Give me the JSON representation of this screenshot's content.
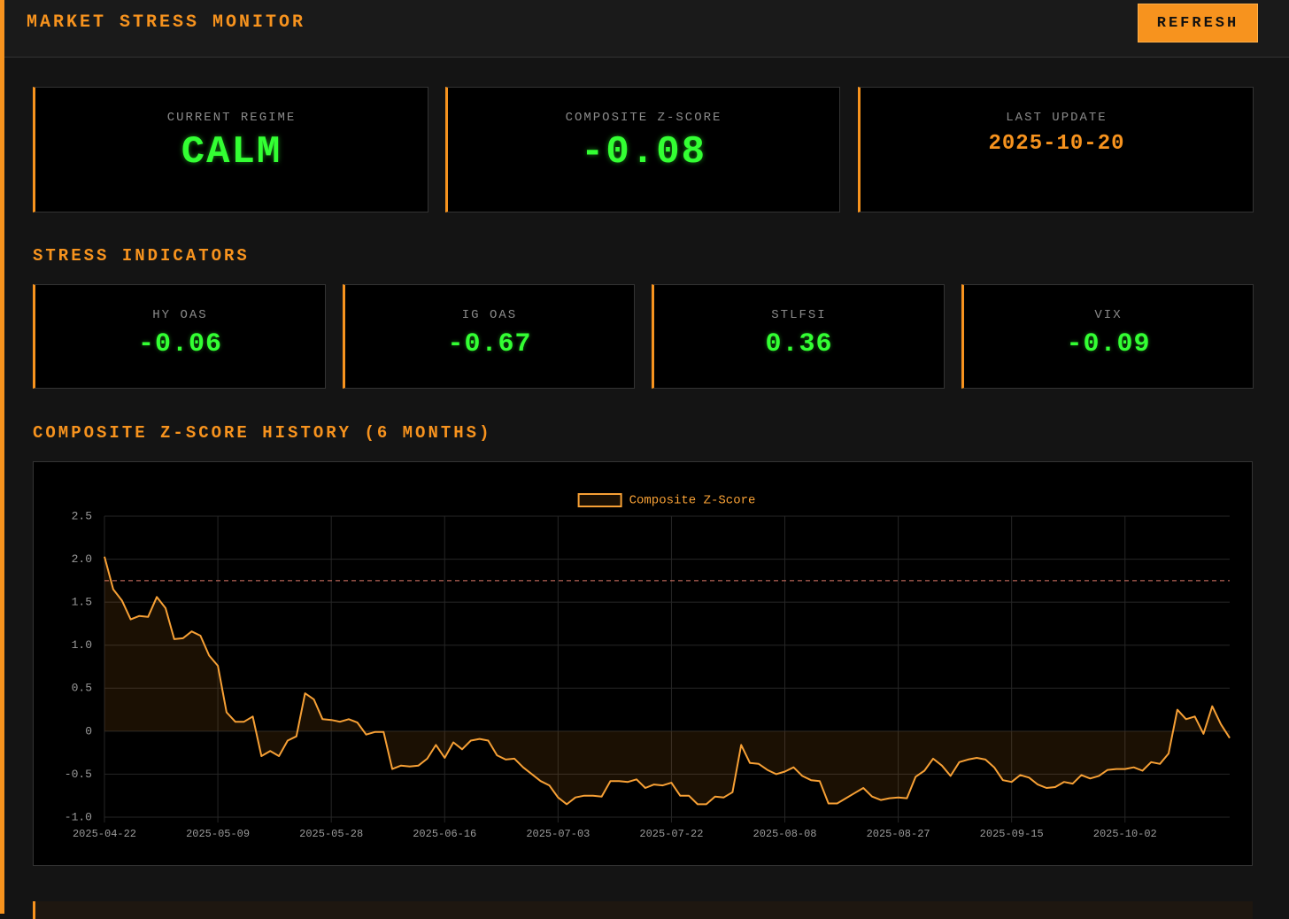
{
  "header": {
    "title": "MARKET STRESS MONITOR",
    "button": "REFRESH"
  },
  "summary": [
    {
      "label": "CURRENT REGIME",
      "value": "CALM"
    },
    {
      "label": "COMPOSITE Z-SCORE",
      "value": "-0.08"
    },
    {
      "label": "LAST UPDATE",
      "value": "2025-10-20"
    }
  ],
  "indicators_title": "STRESS INDICATORS",
  "indicators": [
    {
      "label": "HY OAS",
      "value": "-0.06"
    },
    {
      "label": "IG OAS",
      "value": "-0.67"
    },
    {
      "label": "STLFSI",
      "value": "0.36"
    },
    {
      "label": "VIX",
      "value": "-0.09"
    }
  ],
  "chart_title": "COMPOSITE Z-SCORE HISTORY (6 MONTHS)",
  "chart_data": {
    "type": "line",
    "categories": [
      "2025-04-22",
      null,
      null,
      null,
      null,
      null,
      null,
      null,
      null,
      null,
      null,
      null,
      null,
      "2025-05-09",
      null,
      null,
      null,
      null,
      null,
      null,
      null,
      null,
      null,
      null,
      null,
      null,
      "2025-05-28",
      null,
      null,
      null,
      null,
      null,
      null,
      null,
      null,
      null,
      null,
      null,
      null,
      "2025-06-16",
      null,
      null,
      null,
      null,
      null,
      null,
      null,
      null,
      null,
      null,
      null,
      null,
      "2025-07-03",
      null,
      null,
      null,
      null,
      null,
      null,
      null,
      null,
      null,
      null,
      null,
      null,
      "2025-07-22",
      null,
      null,
      null,
      null,
      null,
      null,
      null,
      null,
      null,
      null,
      null,
      null,
      "2025-08-08",
      null,
      null,
      null,
      null,
      null,
      null,
      null,
      null,
      null,
      null,
      null,
      null,
      "2025-08-27",
      null,
      null,
      null,
      null,
      null,
      null,
      null,
      null,
      null,
      null,
      null,
      null,
      "2025-09-15",
      null,
      null,
      null,
      null,
      null,
      null,
      null,
      null,
      null,
      null,
      null,
      null,
      "2025-10-02",
      null,
      null,
      null,
      null,
      null,
      null,
      null,
      null,
      null,
      null,
      null,
      null
    ],
    "series": [
      {
        "name": "Composite Z-Score",
        "color": "#f7a035",
        "fill": "rgba(247,147,30,0.11)",
        "values": [
          2.03,
          1.65,
          1.52,
          1.3,
          1.34,
          1.33,
          1.56,
          1.43,
          1.07,
          1.08,
          1.16,
          1.11,
          0.88,
          0.76,
          0.22,
          0.11,
          0.11,
          0.17,
          -0.29,
          -0.23,
          -0.29,
          -0.11,
          -0.06,
          0.44,
          0.37,
          0.14,
          0.13,
          0.11,
          0.14,
          0.1,
          -0.04,
          -0.01,
          -0.01,
          -0.44,
          -0.4,
          -0.41,
          -0.4,
          -0.32,
          -0.16,
          -0.31,
          -0.13,
          -0.21,
          -0.11,
          -0.09,
          -0.11,
          -0.28,
          -0.33,
          -0.32,
          -0.42,
          -0.5,
          -0.58,
          -0.63,
          -0.77,
          -0.85,
          -0.77,
          -0.75,
          -0.75,
          -0.76,
          -0.58,
          -0.58,
          -0.59,
          -0.56,
          -0.66,
          -0.62,
          -0.63,
          -0.6,
          -0.75,
          -0.75,
          -0.85,
          -0.85,
          -0.76,
          -0.77,
          -0.71,
          -0.16,
          -0.37,
          -0.38,
          -0.45,
          -0.5,
          -0.47,
          -0.42,
          -0.52,
          -0.57,
          -0.58,
          -0.84,
          -0.84,
          -0.78,
          -0.72,
          -0.66,
          -0.76,
          -0.8,
          -0.78,
          -0.77,
          -0.78,
          -0.53,
          -0.46,
          -0.32,
          -0.4,
          -0.52,
          -0.36,
          -0.33,
          -0.31,
          -0.33,
          -0.42,
          -0.57,
          -0.59,
          -0.51,
          -0.54,
          -0.62,
          -0.66,
          -0.65,
          -0.59,
          -0.61,
          -0.51,
          -0.55,
          -0.52,
          -0.45,
          -0.44,
          -0.44,
          -0.42,
          -0.46,
          -0.36,
          -0.38,
          -0.26,
          0.25,
          0.14,
          0.17,
          -0.03,
          0.29,
          0.08,
          -0.08
        ]
      }
    ],
    "ylim": [
      -1,
      2.5
    ],
    "yticks": [
      {
        "value": -1,
        "label": "-1.0"
      },
      -0.5,
      0,
      0.5,
      {
        "value": 1,
        "label": "1.0"
      },
      1.5,
      {
        "value": 2,
        "label": "2.0"
      },
      2.5
    ],
    "threshold": 1.75,
    "threshold_color": "#e07a6a",
    "grid": true,
    "legend": "top"
  }
}
